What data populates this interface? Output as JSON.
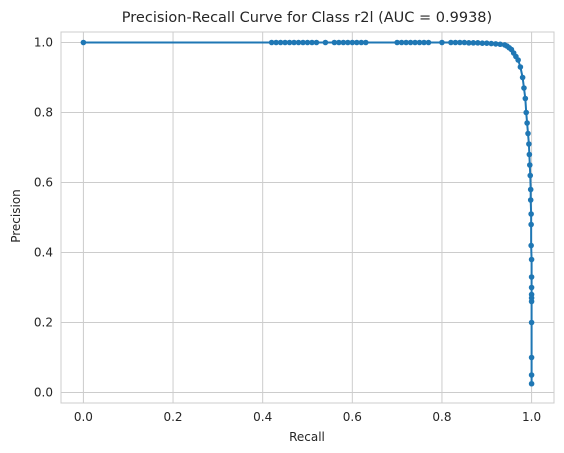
{
  "chart_data": {
    "type": "line",
    "title": "Precision-Recall Curve for Class r2l (AUC = 0.9938)",
    "xlabel": "Recall",
    "ylabel": "Precision",
    "xlim": [
      -0.05,
      1.05
    ],
    "ylim": [
      -0.03,
      1.03
    ],
    "xticks": [
      0.0,
      0.2,
      0.4,
      0.6,
      0.8,
      1.0
    ],
    "xtick_labels": [
      "0.0",
      "0.2",
      "0.4",
      "0.6",
      "0.8",
      "1.0"
    ],
    "yticks": [
      0.0,
      0.2,
      0.4,
      0.6,
      0.8,
      1.0
    ],
    "ytick_labels": [
      "0.0",
      "0.2",
      "0.4",
      "0.6",
      "0.8",
      "1.0"
    ],
    "grid": true,
    "marker": "circle",
    "color": "#1f77b4",
    "series": [
      {
        "x": [
          0.0,
          0.42,
          0.43,
          0.44,
          0.45,
          0.46,
          0.47,
          0.48,
          0.49,
          0.5,
          0.51,
          0.52,
          0.54,
          0.56,
          0.57,
          0.58,
          0.59,
          0.6,
          0.61,
          0.62,
          0.63,
          0.7,
          0.71,
          0.72,
          0.73,
          0.74,
          0.75,
          0.76,
          0.77,
          0.8,
          0.82,
          0.83,
          0.84,
          0.85,
          0.86,
          0.87,
          0.88,
          0.89,
          0.9,
          0.91,
          0.92,
          0.93,
          0.94,
          0.945,
          0.95,
          0.955,
          0.96,
          0.965,
          0.97,
          0.975,
          0.98,
          0.983,
          0.986,
          0.988,
          0.99,
          0.992,
          0.994,
          0.995,
          0.996,
          0.997,
          0.998,
          0.998,
          0.999,
          0.999,
          0.999,
          1.0,
          1.0,
          1.0,
          1.0,
          1.0,
          1.0,
          1.0,
          1.0,
          1.0,
          1.0
        ],
        "y": [
          1.0,
          1.0,
          1.0,
          1.0,
          1.0,
          1.0,
          1.0,
          1.0,
          1.0,
          1.0,
          1.0,
          1.0,
          1.0,
          1.0,
          1.0,
          1.0,
          1.0,
          1.0,
          1.0,
          1.0,
          1.0,
          1.0,
          1.0,
          1.0,
          1.0,
          1.0,
          1.0,
          1.0,
          1.0,
          1.0,
          1.0,
          1.0,
          1.0,
          1.0,
          0.999,
          0.999,
          0.999,
          0.998,
          0.998,
          0.997,
          0.996,
          0.995,
          0.993,
          0.99,
          0.985,
          0.98,
          0.97,
          0.96,
          0.95,
          0.93,
          0.9,
          0.87,
          0.84,
          0.8,
          0.77,
          0.74,
          0.71,
          0.68,
          0.65,
          0.62,
          0.58,
          0.55,
          0.51,
          0.48,
          0.42,
          0.38,
          0.33,
          0.3,
          0.28,
          0.27,
          0.26,
          0.2,
          0.1,
          0.05,
          0.025
        ]
      }
    ]
  }
}
